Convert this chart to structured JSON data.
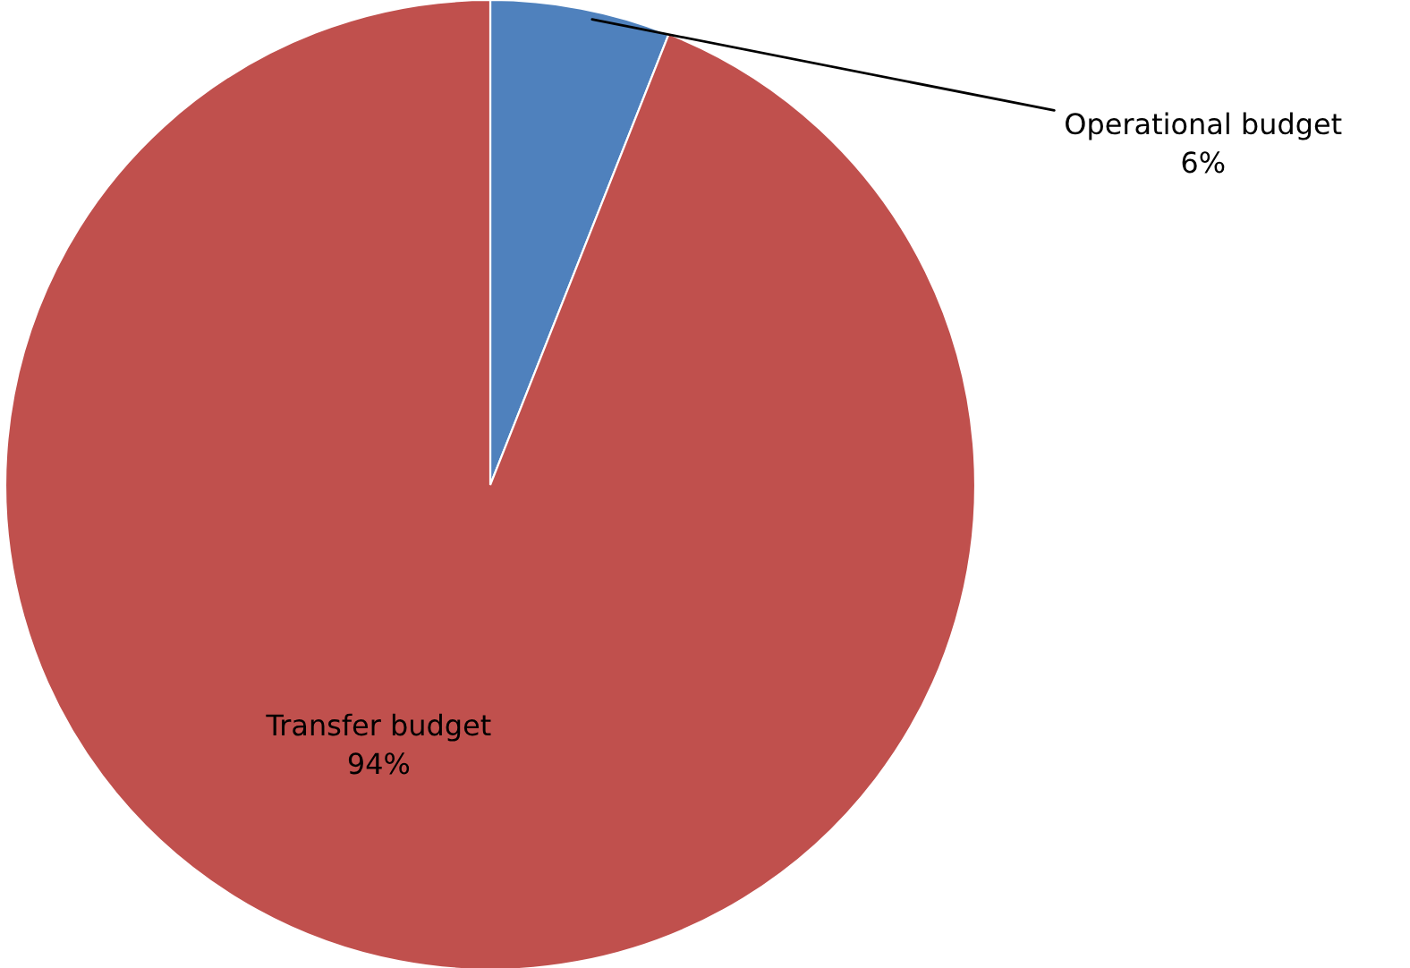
{
  "chart_data": {
    "type": "pie",
    "categories": [
      "Operational budget",
      "Transfer budget"
    ],
    "values": [
      6,
      94
    ],
    "value_labels": [
      "6%",
      "94%"
    ],
    "colors": [
      "#4f81bd",
      "#c0504d"
    ]
  }
}
